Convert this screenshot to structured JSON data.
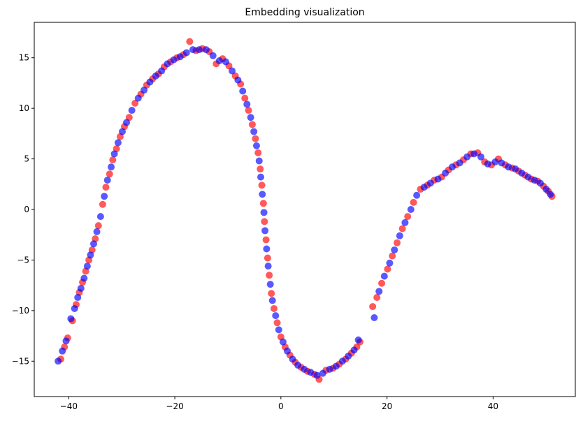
{
  "chart_data": {
    "type": "scatter",
    "title": "Embedding visualization",
    "xlabel": "",
    "ylabel": "",
    "xlim": [
      -46.5,
      55.5
    ],
    "ylim": [
      -18.5,
      18.5
    ],
    "xticks": [
      -40,
      -20,
      0,
      20,
      40
    ],
    "xtick_labels": [
      "−40",
      "−20",
      "0",
      "20",
      "40"
    ],
    "yticks": [
      -15,
      -10,
      -5,
      0,
      5,
      10,
      15
    ],
    "ytick_labels": [
      "−15",
      "−10",
      "−5",
      "0",
      "5",
      "10",
      "15"
    ],
    "grid": false,
    "legend": "none",
    "marker_opacity": 0.65,
    "series": [
      {
        "color": "#ff0000",
        "points": [
          [
            -41.5,
            -14.8
          ],
          [
            -40.8,
            -13.6
          ],
          [
            -40.2,
            -12.7
          ],
          [
            -39.3,
            -11.0
          ],
          [
            -38.6,
            -9.4
          ],
          [
            -38.0,
            -8.2
          ],
          [
            -37.4,
            -7.2
          ],
          [
            -36.8,
            -6.1
          ],
          [
            -36.2,
            -5.0
          ],
          [
            -35.6,
            -4.0
          ],
          [
            -35.0,
            -2.9
          ],
          [
            -34.4,
            -1.6
          ],
          [
            -33.6,
            0.5
          ],
          [
            -33.0,
            2.2
          ],
          [
            -32.3,
            3.5
          ],
          [
            -31.7,
            4.9
          ],
          [
            -31.0,
            6.0
          ],
          [
            -30.3,
            7.2
          ],
          [
            -29.5,
            8.2
          ],
          [
            -28.6,
            9.1
          ],
          [
            -27.5,
            10.5
          ],
          [
            -26.4,
            11.4
          ],
          [
            -25.3,
            12.3
          ],
          [
            -24.2,
            12.9
          ],
          [
            -23.1,
            13.4
          ],
          [
            -22.0,
            14.1
          ],
          [
            -20.8,
            14.6
          ],
          [
            -19.6,
            15.0
          ],
          [
            -18.4,
            15.3
          ],
          [
            -17.2,
            16.6
          ],
          [
            -16.0,
            15.7
          ],
          [
            -14.8,
            15.9
          ],
          [
            -13.5,
            15.6
          ],
          [
            -12.2,
            14.4
          ],
          [
            -11.0,
            14.9
          ],
          [
            -9.8,
            14.2
          ],
          [
            -8.6,
            13.2
          ],
          [
            -7.6,
            12.4
          ],
          [
            -6.8,
            11.0
          ],
          [
            -6.1,
            9.8
          ],
          [
            -5.4,
            8.4
          ],
          [
            -4.8,
            7.0
          ],
          [
            -4.3,
            5.6
          ],
          [
            -3.9,
            4.0
          ],
          [
            -3.6,
            2.4
          ],
          [
            -3.3,
            0.6
          ],
          [
            -3.1,
            -1.2
          ],
          [
            -2.8,
            -3.0
          ],
          [
            -2.5,
            -4.8
          ],
          [
            -2.2,
            -6.5
          ],
          [
            -1.8,
            -8.3
          ],
          [
            -1.3,
            -9.8
          ],
          [
            -0.7,
            -11.2
          ],
          [
            0.0,
            -12.6
          ],
          [
            0.8,
            -13.6
          ],
          [
            1.7,
            -14.4
          ],
          [
            2.7,
            -15.1
          ],
          [
            3.8,
            -15.6
          ],
          [
            5.0,
            -16.0
          ],
          [
            6.3,
            -16.3
          ],
          [
            7.2,
            -16.8
          ],
          [
            8.5,
            -15.9
          ],
          [
            9.8,
            -15.7
          ],
          [
            11.0,
            -15.3
          ],
          [
            12.2,
            -14.8
          ],
          [
            13.3,
            -14.2
          ],
          [
            14.3,
            -13.6
          ],
          [
            14.9,
            -13.1
          ],
          [
            17.3,
            -9.6
          ],
          [
            18.1,
            -8.7
          ],
          [
            19.0,
            -7.3
          ],
          [
            20.1,
            -5.9
          ],
          [
            21.0,
            -4.6
          ],
          [
            21.9,
            -3.3
          ],
          [
            22.9,
            -1.9
          ],
          [
            23.9,
            -0.7
          ],
          [
            25.0,
            0.7
          ],
          [
            26.3,
            2.0
          ],
          [
            27.6,
            2.4
          ],
          [
            28.9,
            2.9
          ],
          [
            30.3,
            3.2
          ],
          [
            31.6,
            3.9
          ],
          [
            33.0,
            4.4
          ],
          [
            34.4,
            4.9
          ],
          [
            35.8,
            5.5
          ],
          [
            37.1,
            5.6
          ],
          [
            38.4,
            4.7
          ],
          [
            39.7,
            4.4
          ],
          [
            41.0,
            5.0
          ],
          [
            42.3,
            4.4
          ],
          [
            43.6,
            4.1
          ],
          [
            44.8,
            3.8
          ],
          [
            46.0,
            3.4
          ],
          [
            47.2,
            3.0
          ],
          [
            48.4,
            2.8
          ],
          [
            49.5,
            2.3
          ],
          [
            50.4,
            1.8
          ],
          [
            51.1,
            1.3
          ]
        ]
      },
      {
        "color": "#0000ff",
        "points": [
          [
            -42.0,
            -15.0
          ],
          [
            -41.2,
            -14.0
          ],
          [
            -40.5,
            -13.0
          ],
          [
            -39.6,
            -10.8
          ],
          [
            -38.9,
            -9.8
          ],
          [
            -38.3,
            -8.7
          ],
          [
            -37.7,
            -7.8
          ],
          [
            -37.1,
            -6.8
          ],
          [
            -36.5,
            -5.6
          ],
          [
            -35.9,
            -4.5
          ],
          [
            -35.3,
            -3.4
          ],
          [
            -34.7,
            -2.2
          ],
          [
            -34.0,
            -0.7
          ],
          [
            -33.3,
            1.3
          ],
          [
            -32.7,
            2.9
          ],
          [
            -32.0,
            4.2
          ],
          [
            -31.4,
            5.5
          ],
          [
            -30.7,
            6.6
          ],
          [
            -29.9,
            7.7
          ],
          [
            -29.1,
            8.6
          ],
          [
            -28.1,
            9.8
          ],
          [
            -26.9,
            11.0
          ],
          [
            -25.8,
            11.8
          ],
          [
            -24.7,
            12.6
          ],
          [
            -23.6,
            13.2
          ],
          [
            -22.5,
            13.7
          ],
          [
            -21.4,
            14.4
          ],
          [
            -20.2,
            14.8
          ],
          [
            -19.0,
            15.1
          ],
          [
            -17.8,
            15.5
          ],
          [
            -16.6,
            15.8
          ],
          [
            -15.4,
            15.8
          ],
          [
            -14.1,
            15.8
          ],
          [
            -12.8,
            15.2
          ],
          [
            -11.6,
            14.7
          ],
          [
            -10.4,
            14.6
          ],
          [
            -9.2,
            13.7
          ],
          [
            -8.1,
            12.8
          ],
          [
            -7.2,
            11.7
          ],
          [
            -6.4,
            10.4
          ],
          [
            -5.7,
            9.1
          ],
          [
            -5.1,
            7.7
          ],
          [
            -4.6,
            6.3
          ],
          [
            -4.1,
            4.8
          ],
          [
            -3.8,
            3.2
          ],
          [
            -3.5,
            1.5
          ],
          [
            -3.2,
            -0.3
          ],
          [
            -3.0,
            -2.1
          ],
          [
            -2.7,
            -3.9
          ],
          [
            -2.4,
            -5.6
          ],
          [
            -2.0,
            -7.4
          ],
          [
            -1.6,
            -9.0
          ],
          [
            -1.0,
            -10.5
          ],
          [
            -0.4,
            -11.9
          ],
          [
            0.4,
            -13.1
          ],
          [
            1.2,
            -14.0
          ],
          [
            2.2,
            -14.8
          ],
          [
            3.2,
            -15.4
          ],
          [
            4.4,
            -15.8
          ],
          [
            5.6,
            -16.1
          ],
          [
            6.8,
            -16.4
          ],
          [
            7.9,
            -16.2
          ],
          [
            9.2,
            -15.8
          ],
          [
            10.4,
            -15.5
          ],
          [
            11.6,
            -15.0
          ],
          [
            12.7,
            -14.5
          ],
          [
            13.8,
            -13.9
          ],
          [
            14.6,
            -12.9
          ],
          [
            17.6,
            -10.7
          ],
          [
            18.5,
            -8.1
          ],
          [
            19.5,
            -6.6
          ],
          [
            20.5,
            -5.3
          ],
          [
            21.4,
            -4.0
          ],
          [
            22.4,
            -2.6
          ],
          [
            23.4,
            -1.3
          ],
          [
            24.5,
            0.0
          ],
          [
            25.6,
            1.4
          ],
          [
            27.0,
            2.2
          ],
          [
            28.2,
            2.6
          ],
          [
            29.6,
            3.0
          ],
          [
            31.0,
            3.6
          ],
          [
            32.3,
            4.2
          ],
          [
            33.7,
            4.6
          ],
          [
            35.1,
            5.2
          ],
          [
            36.4,
            5.5
          ],
          [
            37.7,
            5.2
          ],
          [
            39.0,
            4.5
          ],
          [
            40.4,
            4.7
          ],
          [
            41.6,
            4.6
          ],
          [
            42.9,
            4.2
          ],
          [
            44.2,
            4.0
          ],
          [
            45.4,
            3.6
          ],
          [
            46.6,
            3.2
          ],
          [
            47.8,
            2.9
          ],
          [
            48.9,
            2.6
          ],
          [
            50.0,
            2.0
          ],
          [
            50.8,
            1.5
          ]
        ]
      }
    ]
  }
}
